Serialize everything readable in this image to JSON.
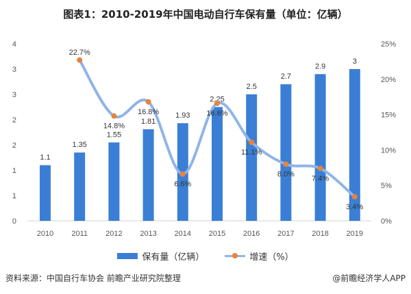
{
  "chart_data": {
    "type": "bar+line",
    "title": "图表1：2010-2019年中国电动自行车保有量（单位：亿辆）",
    "categories": [
      "2010",
      "2011",
      "2012",
      "2013",
      "2014",
      "2015",
      "2016",
      "2017",
      "2018",
      "2019"
    ],
    "series": [
      {
        "name": "保有量（亿辆）",
        "type": "bar",
        "axis": "left",
        "values": [
          1.1,
          1.35,
          1.55,
          1.81,
          1.93,
          2.25,
          2.5,
          2.7,
          2.9,
          3
        ],
        "labels": [
          "1.1",
          "1.35",
          "1.55",
          "1.81",
          "1.93",
          "2.25",
          "2.5",
          "2.7",
          "2.9",
          "3"
        ]
      },
      {
        "name": "增速（%）",
        "type": "line",
        "axis": "right",
        "values": [
          null,
          22.7,
          14.8,
          16.8,
          6.6,
          16.6,
          11.1,
          8.0,
          7.4,
          3.4
        ],
        "labels": [
          "",
          "22.7%",
          "14.8%",
          "16.8%",
          "6.6%",
          "16.6%",
          "11.1%",
          "8.0%",
          "7.4%",
          "3.4%"
        ]
      }
    ],
    "left_axis": {
      "ylim": [
        0,
        3.5
      ],
      "tick_values": [
        0,
        0.5,
        1,
        1.5,
        2,
        2.5,
        3,
        3.5
      ],
      "tick_labels": [
        "0",
        "1",
        "1",
        "2",
        "2",
        "3",
        "3",
        "4"
      ]
    },
    "right_axis": {
      "ylim": [
        0,
        25
      ],
      "tick_values": [
        0,
        5,
        10,
        15,
        20,
        25
      ],
      "tick_labels": [
        "0%",
        "5%",
        "10%",
        "15%",
        "20%",
        "25%"
      ]
    },
    "grid": false,
    "legend_position": "bottom",
    "colors": {
      "bar": "#3a7fd5",
      "line": "#8fb4e8",
      "marker": "#e8833a"
    }
  },
  "footer": {
    "source": "资料来源：中国自行车协会 前瞻产业研究院整理",
    "credit": "@前瞻经济学人APP"
  }
}
